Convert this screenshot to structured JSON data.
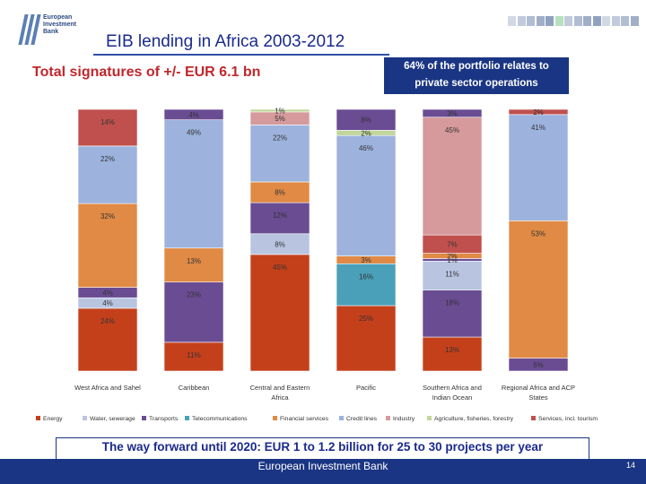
{
  "logo": {
    "line1": "European",
    "line2": "Investment",
    "line3": "Bank"
  },
  "header": {
    "title": "EIB lending in Africa 2003-2012",
    "subtitle": "Total signatures of +/- EUR 6.1 bn"
  },
  "callout": {
    "line1": "64% of the portfolio relates to",
    "line2": "private sector operations"
  },
  "colors": {
    "Energy": "#c4401b",
    "Water, sewerage": "#b8c4e0",
    "Transports": "#6a4c93",
    "Telecommunications": "#4aa0b8",
    "Financial services": "#e08a45",
    "Credit lines": "#9db3dd",
    "Industry": "#d69a9c",
    "Agriculture, fisheries, forestry": "#c2d69b",
    "Services, incl. tourism": "#c0504d",
    "slate_square": "#7f93b5",
    "accent_square": "#2aa84a"
  },
  "chart_data": {
    "type": "bar",
    "stacked": true,
    "ylim": [
      0,
      100
    ],
    "categories": [
      "West Africa and Sahel",
      "Caribbean",
      "Central and Eastern Africa",
      "Pacific",
      "Southern Africa and Indian Ocean",
      "Regional Africa and ACP States"
    ],
    "category_lines": [
      [
        "West Africa and Sahel"
      ],
      [
        "Caribbean"
      ],
      [
        "Central and Eastern",
        "Africa"
      ],
      [
        "Pacific"
      ],
      [
        "Southern Africa and",
        "Indian Ocean"
      ],
      [
        "Regional Africa and ACP",
        "States"
      ]
    ],
    "columns": [
      {
        "category": "West Africa and Sahel",
        "segments": [
          {
            "series": "Energy",
            "value": 24,
            "label": "24%"
          },
          {
            "series": "Water, sewerage",
            "value": 4,
            "label": "4%"
          },
          {
            "series": "Transports",
            "value": 4,
            "label": "4%"
          },
          {
            "series": "Financial services",
            "value": 32,
            "label": "32%"
          },
          {
            "series": "Credit lines",
            "value": 22,
            "label": "22%"
          },
          {
            "series": "Services, incl. tourism",
            "value": 14,
            "label": "14%"
          }
        ]
      },
      {
        "category": "Caribbean",
        "segments": [
          {
            "series": "Energy",
            "value": 11,
            "label": "11%"
          },
          {
            "series": "Transports",
            "value": 23,
            "label": "23%"
          },
          {
            "series": "Financial services",
            "value": 13,
            "label": "13%"
          },
          {
            "series": "Credit lines",
            "value": 49,
            "label": "49%"
          },
          {
            "series": "Transports",
            "value": 4,
            "label": "4%"
          }
        ]
      },
      {
        "category": "Central and Eastern Africa",
        "segments": [
          {
            "series": "Energy",
            "value": 45,
            "label": "45%"
          },
          {
            "series": "Water, sewerage",
            "value": 8,
            "label": "8%"
          },
          {
            "series": "Transports",
            "value": 12,
            "label": "12%"
          },
          {
            "series": "Financial services",
            "value": 8,
            "label": "8%"
          },
          {
            "series": "Credit lines",
            "value": 22,
            "label": "22%"
          },
          {
            "series": "Industry",
            "value": 5,
            "label": "5%"
          },
          {
            "series": "Agriculture, fisheries, forestry",
            "value": 1,
            "label": "1%"
          }
        ]
      },
      {
        "category": "Pacific",
        "segments": [
          {
            "series": "Energy",
            "value": 25,
            "label": "25%"
          },
          {
            "series": "Telecommunications",
            "value": 16,
            "label": "16%"
          },
          {
            "series": "Financial services",
            "value": 3,
            "label": "3%"
          },
          {
            "series": "Credit lines",
            "value": 46,
            "label": "46%"
          },
          {
            "series": "Agriculture, fisheries, forestry",
            "value": 2,
            "label": "2%"
          },
          {
            "series": "Transports",
            "value": 8,
            "label": "8%"
          }
        ]
      },
      {
        "category": "Southern Africa and Indian Ocean",
        "segments": [
          {
            "series": "Energy",
            "value": 13,
            "label": "13%"
          },
          {
            "series": "Transports",
            "value": 18,
            "label": "18%"
          },
          {
            "series": "Water, sewerage",
            "value": 11,
            "label": "11%"
          },
          {
            "series": "Transports",
            "value": 1,
            "label": "1%"
          },
          {
            "series": "Financial services",
            "value": 2,
            "label": "2%"
          },
          {
            "series": "Services, incl. tourism",
            "value": 7,
            "label": "7%"
          },
          {
            "series": "Industry",
            "value": 45,
            "label": "45%"
          },
          {
            "series": "Transports",
            "value": 3,
            "label": "3%"
          }
        ]
      },
      {
        "category": "Regional Africa and ACP States",
        "segments": [
          {
            "series": "Transports",
            "value": 5,
            "label": "5%"
          },
          {
            "series": "Financial services",
            "value": 53,
            "label": "53%"
          },
          {
            "series": "Credit lines",
            "value": 41,
            "label": "41%"
          },
          {
            "series": "Services, incl. tourism",
            "value": 2,
            "label": "2%"
          }
        ]
      }
    ],
    "legend": [
      "Energy",
      "Water, sewerage",
      "Transports",
      "Telecommunications",
      "Financial services",
      "Credit lines",
      "Industry",
      "Agriculture, fisheries, forestry",
      "Services, incl. tourism"
    ],
    "legend_position": "bottom"
  },
  "footer": {
    "text": "The way forward until 2020: EUR 1 to 1.2 billion for 25 to 30 projects per year",
    "bank": "European Investment Bank",
    "page": "14"
  }
}
